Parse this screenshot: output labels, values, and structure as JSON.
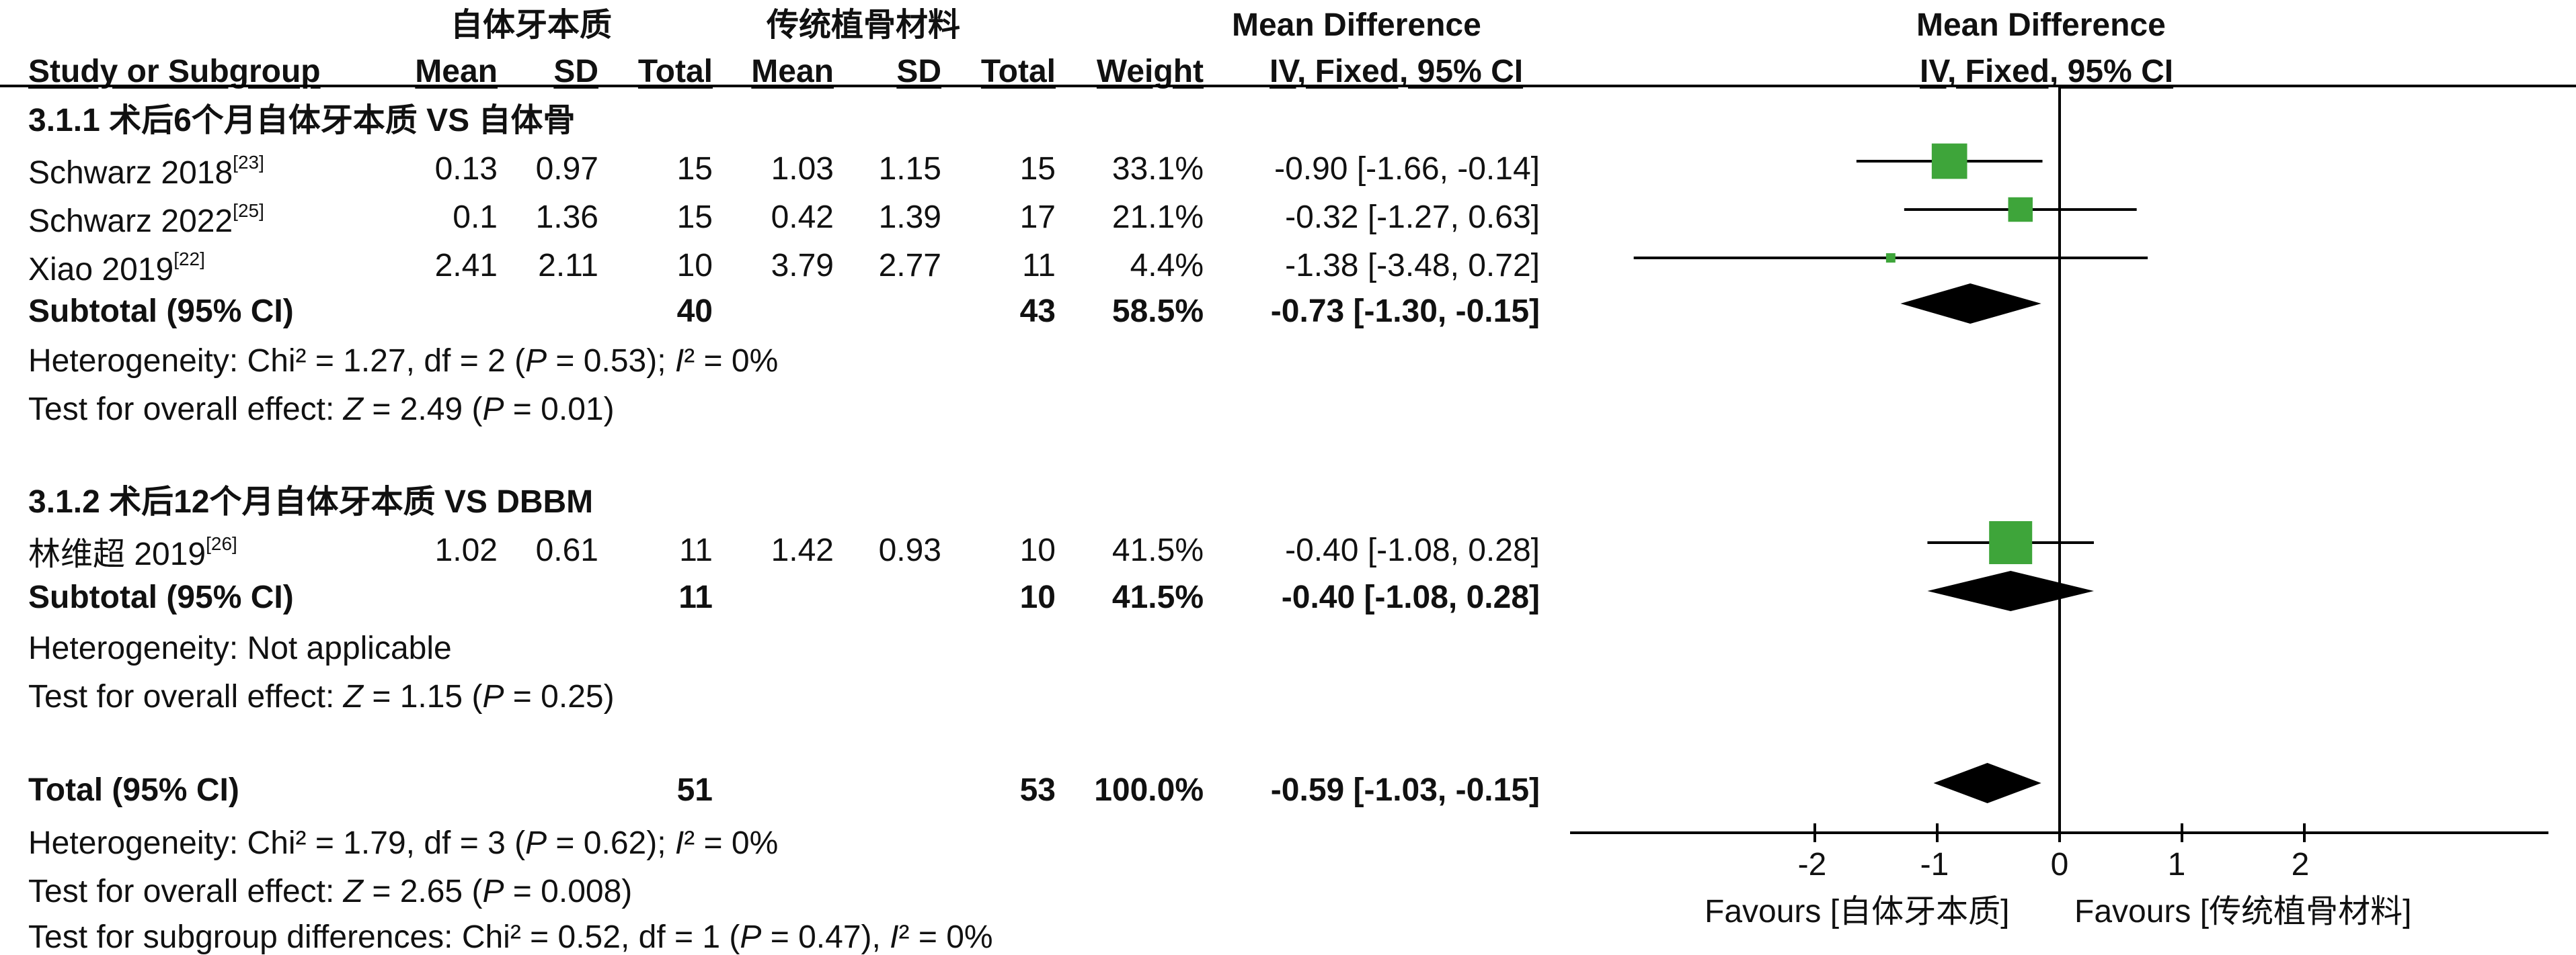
{
  "header": {
    "group_exp": "自体牙本质",
    "group_ctl": "传统植骨材料",
    "md_title": "Mean Difference",
    "study_col": "Study or Subgroup",
    "mean": "Mean",
    "sd": "SD",
    "total": "Total",
    "weight": "Weight",
    "md_method": "IV, Fixed, 95% CI",
    "plot_title": "Mean Difference",
    "plot_method": "IV, Fixed, 95% CI"
  },
  "subgroup1": {
    "title": "3.1.1 术后6个月自体牙本质 VS 自体骨",
    "studies": [
      {
        "name": "Schwarz 2018",
        "ref": "[23]",
        "m1": "0.13",
        "sd1": "0.97",
        "n1": "15",
        "m2": "1.03",
        "sd2": "1.15",
        "n2": "15",
        "weight": "33.1%",
        "ci": "-0.90 [-1.66, -0.14]"
      },
      {
        "name": "Schwarz 2022",
        "ref": "[25]",
        "m1": "0.1",
        "sd1": "1.36",
        "n1": "15",
        "m2": "0.42",
        "sd2": "1.39",
        "n2": "17",
        "weight": "21.1%",
        "ci": "-0.32 [-1.27, 0.63]"
      },
      {
        "name": "Xiao 2019",
        "ref": "[22]",
        "m1": "2.41",
        "sd1": "2.11",
        "n1": "10",
        "m2": "3.79",
        "sd2": "2.77",
        "n2": "11",
        "weight": "4.4%",
        "ci": "-1.38 [-3.48, 0.72]"
      }
    ],
    "subtotal": {
      "label": "Subtotal (95% CI)",
      "n1": "40",
      "n2": "43",
      "weight": "58.5%",
      "ci": "-0.73 [-1.30, -0.15]"
    },
    "het_pre": "Heterogeneity: Chi² = 1.27, df = 2 (",
    "het_p": "P",
    "het_mid": " = 0.53); ",
    "het_i": "I",
    "het_post": "² = 0%",
    "eff_pre": "Test for overall effect: ",
    "eff_z": "Z",
    "eff_mid": " = 2.49 (",
    "eff_p": "P",
    "eff_post": " = 0.01)"
  },
  "subgroup2": {
    "title": "3.1.2 术后12个月自体牙本质 VS DBBM",
    "studies": [
      {
        "name": "林维超 2019",
        "ref": "[26]",
        "m1": "1.02",
        "sd1": "0.61",
        "n1": "11",
        "m2": "1.42",
        "sd2": "0.93",
        "n2": "10",
        "weight": "41.5%",
        "ci": "-0.40 [-1.08, 0.28]"
      }
    ],
    "subtotal": {
      "label": "Subtotal (95% CI)",
      "n1": "11",
      "n2": "10",
      "weight": "41.5%",
      "ci": "-0.40 [-1.08, 0.28]"
    },
    "het": "Heterogeneity: Not applicable",
    "eff_pre": "Test for overall effect: ",
    "eff_z": "Z",
    "eff_mid": " = 1.15 (",
    "eff_p": "P",
    "eff_post": " = 0.25)"
  },
  "overall": {
    "label": "Total (95% CI)",
    "n1": "51",
    "n2": "53",
    "weight": "100.0%",
    "ci": "-0.59 [-1.03, -0.15]",
    "het_pre": "Heterogeneity: Chi² = 1.79, df = 3 (",
    "het_p": "P",
    "het_mid": " = 0.62); ",
    "het_i": "I",
    "het_post": "² = 0%",
    "eff_pre": "Test for overall effect: ",
    "eff_z": "Z",
    "eff_mid": " = 2.65 (",
    "eff_p": "P",
    "eff_post": " = 0.008)",
    "sub_pre": "Test for subgroup differences: Chi² = 0.52, df = 1 (",
    "sub_p": "P",
    "sub_mid": " = 0.47), ",
    "sub_i": "I",
    "sub_post": "² = 0%"
  },
  "axis": {
    "ticks": [
      "-2",
      "-1",
      "0",
      "1",
      "2"
    ],
    "favours_left": "Favours [自体牙本质]",
    "favours_right": "Favours [传统植骨材料]"
  },
  "chart_data": {
    "type": "forest",
    "xlim": [
      -4.0,
      4.0
    ],
    "xticks": [
      -2,
      -1,
      0,
      1,
      2
    ],
    "study_color": "#3ea53a",
    "diamond_color": "#000000",
    "studies": [
      {
        "label": "Schwarz 2018",
        "md": -0.9,
        "lo": -1.66,
        "hi": -0.14,
        "weight": 33.1
      },
      {
        "label": "Schwarz 2022",
        "md": -0.32,
        "lo": -1.27,
        "hi": 0.63,
        "weight": 21.1
      },
      {
        "label": "Xiao 2019",
        "md": -1.38,
        "lo": -3.48,
        "hi": 0.72,
        "weight": 4.4
      },
      {
        "label": "林维超 2019",
        "md": -0.4,
        "lo": -1.08,
        "hi": 0.28,
        "weight": 41.5
      }
    ],
    "diamonds": [
      {
        "label": "Subtotal 3.1.1",
        "md": -0.73,
        "lo": -1.3,
        "hi": -0.15
      },
      {
        "label": "Subtotal 3.1.2",
        "md": -0.4,
        "lo": -1.08,
        "hi": 0.28
      },
      {
        "label": "Total",
        "md": -0.59,
        "lo": -1.03,
        "hi": -0.15
      }
    ]
  }
}
